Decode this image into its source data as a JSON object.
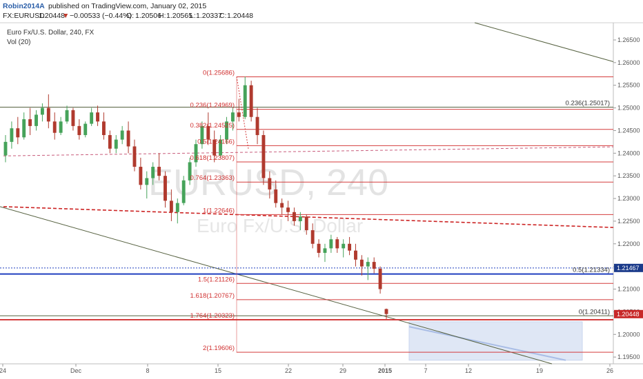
{
  "header": {
    "username": "Robin2014A",
    "published": "published on TradingView.com, January 02, 2015",
    "symbol": "FX:EURUSD",
    "last": "1.20448",
    "change_arrow": "▼",
    "change": "−0.00533 (−0.44%)",
    "o_label": "O:",
    "o": "1.20506",
    "h_label": "H:",
    "h": "1.20565",
    "l_label": "L:",
    "l": "1.20337",
    "c_label": "C:",
    "c": "1.20448"
  },
  "chart_title": "Euro Fx/U.S. Dollar, 240, FX",
  "indicator": "Vol (20)",
  "watermark": {
    "symbol": "EURUSD, 240",
    "name": "Euro Fx/U.S. Dollar"
  },
  "colors": {
    "up": "#46a35a",
    "down": "#b03a2e",
    "fib": "#d43b3b",
    "trend": "#55603f",
    "blue_level": "#1f3fbf",
    "projection": "#a9bde6",
    "price_label_blue": "#1a3a8a",
    "price_label_red": "#c82828"
  },
  "chart_data": {
    "type": "candlestick",
    "symbol": "FX:EURUSD",
    "timeframe": "240",
    "y_ticks": [
      "1.26500",
      "1.26000",
      "1.25500",
      "1.25000",
      "1.24500",
      "1.24000",
      "1.23500",
      "1.23000",
      "1.22500",
      "1.22000",
      "1.21500",
      "1.21000",
      "1.20500",
      "1.20000",
      "1.19500"
    ],
    "ylim": [
      1.1935,
      1.2688
    ],
    "x_ticks": [
      "24",
      "Dec",
      "8",
      "15",
      "22",
      "29",
      "2015",
      "7",
      "12",
      "19",
      "26"
    ],
    "price_labels": [
      {
        "text": "1.21467",
        "value": 1.21467,
        "color": "blue"
      },
      {
        "text": "1.20448",
        "value": 1.20448,
        "color": "red"
      }
    ],
    "fib_retracement": [
      {
        "label": "0(1.25686)",
        "value": 1.25686
      },
      {
        "label": "0.236(1.24969)",
        "value": 1.24969
      },
      {
        "label": "0.382(1.24525)",
        "value": 1.24525
      },
      {
        "label": "0.5(1.24166)",
        "value": 1.24166
      },
      {
        "label": "0.618(1.23807)",
        "value": 1.23807
      },
      {
        "label": "0.764(1.23363)",
        "value": 1.23363
      },
      {
        "label": "1(1.22646)",
        "value": 1.22646
      },
      {
        "label": "1.5(1.21126)",
        "value": 1.21126
      },
      {
        "label": "1.618(1.20767)",
        "value": 1.20767
      },
      {
        "label": "1.764(1.20323)",
        "value": 1.20323
      },
      {
        "label": "2(1.19606)",
        "value": 1.19606
      }
    ],
    "right_fib": [
      {
        "label": "0.236(1.25017)",
        "value": 1.25017
      },
      {
        "label": "0.5(1.21334)",
        "value": 1.21334
      },
      {
        "label": "0(1.20411)",
        "value": 1.20411
      }
    ],
    "horizontal_lines": [
      {
        "value": 1.25017,
        "style": "solid",
        "color": "olive"
      },
      {
        "value": 1.21467,
        "style": "dotted",
        "color": "blue"
      },
      {
        "value": 1.21334,
        "style": "solid-thick",
        "color": "blue"
      },
      {
        "value": 1.20411,
        "style": "solid",
        "color": "olive"
      },
      {
        "value": 1.20323,
        "style": "solid-thick",
        "color": "red"
      }
    ],
    "candles": [
      [
        1.2395,
        1.244,
        1.238,
        1.2425
      ],
      [
        1.2425,
        1.247,
        1.241,
        1.2455
      ],
      [
        1.2455,
        1.248,
        1.242,
        1.2435
      ],
      [
        1.2435,
        1.249,
        1.243,
        1.2475
      ],
      [
        1.2475,
        1.25,
        1.244,
        1.246
      ],
      [
        1.246,
        1.2495,
        1.245,
        1.2485
      ],
      [
        1.2485,
        1.251,
        1.247,
        1.25
      ],
      [
        1.25,
        1.253,
        1.2455,
        1.247
      ],
      [
        1.247,
        1.249,
        1.243,
        1.2445
      ],
      [
        1.2445,
        1.248,
        1.244,
        1.247
      ],
      [
        1.247,
        1.2505,
        1.2465,
        1.2495
      ],
      [
        1.2495,
        1.25,
        1.245,
        1.246
      ],
      [
        1.246,
        1.2475,
        1.243,
        1.244
      ],
      [
        1.244,
        1.247,
        1.2435,
        1.2465
      ],
      [
        1.2465,
        1.25,
        1.246,
        1.249
      ],
      [
        1.249,
        1.2505,
        1.246,
        1.247
      ],
      [
        1.247,
        1.249,
        1.243,
        1.244
      ],
      [
        1.244,
        1.245,
        1.24,
        1.241
      ],
      [
        1.241,
        1.244,
        1.24,
        1.243
      ],
      [
        1.243,
        1.246,
        1.242,
        1.245
      ],
      [
        1.245,
        1.247,
        1.24,
        1.2415
      ],
      [
        1.2415,
        1.243,
        1.236,
        1.237
      ],
      [
        1.237,
        1.239,
        1.232,
        1.233
      ],
      [
        1.233,
        1.236,
        1.23,
        1.2345
      ],
      [
        1.2345,
        1.238,
        1.233,
        1.237
      ],
      [
        1.237,
        1.24,
        1.234,
        1.235
      ],
      [
        1.235,
        1.236,
        1.228,
        1.2295
      ],
      [
        1.2295,
        1.232,
        1.225,
        1.227
      ],
      [
        1.227,
        1.23,
        1.2245,
        1.229
      ],
      [
        1.229,
        1.235,
        1.2285,
        1.234
      ],
      [
        1.234,
        1.239,
        1.233,
        1.238
      ],
      [
        1.238,
        1.243,
        1.237,
        1.242
      ],
      [
        1.242,
        1.247,
        1.241,
        1.246
      ],
      [
        1.246,
        1.249,
        1.242,
        1.243
      ],
      [
        1.243,
        1.245,
        1.238,
        1.2395
      ],
      [
        1.2395,
        1.244,
        1.239,
        1.243
      ],
      [
        1.243,
        1.248,
        1.242,
        1.247
      ],
      [
        1.247,
        1.25,
        1.245,
        1.249
      ],
      [
        1.249,
        1.252,
        1.247,
        1.248
      ],
      [
        1.248,
        1.2569,
        1.2475,
        1.255
      ],
      [
        1.255,
        1.256,
        1.247,
        1.248
      ],
      [
        1.248,
        1.25,
        1.242,
        1.244
      ],
      [
        1.244,
        1.245,
        1.233,
        1.2345
      ],
      [
        1.2345,
        1.236,
        1.23,
        1.232
      ],
      [
        1.232,
        1.234,
        1.228,
        1.229
      ],
      [
        1.229,
        1.23,
        1.2265,
        1.228
      ],
      [
        1.228,
        1.2295,
        1.225,
        1.227
      ],
      [
        1.227,
        1.228,
        1.224,
        1.225
      ],
      [
        1.225,
        1.227,
        1.223,
        1.226
      ],
      [
        1.226,
        1.2265,
        1.222,
        1.223
      ],
      [
        1.223,
        1.2245,
        1.219,
        1.22
      ],
      [
        1.22,
        1.221,
        1.217,
        1.218
      ],
      [
        1.218,
        1.22,
        1.216,
        1.219
      ],
      [
        1.219,
        1.222,
        1.218,
        1.221
      ],
      [
        1.221,
        1.2215,
        1.218,
        1.219
      ],
      [
        1.219,
        1.221,
        1.217,
        1.22
      ],
      [
        1.22,
        1.2215,
        1.2175,
        1.2185
      ],
      [
        1.2185,
        1.22,
        1.215,
        1.2165
      ],
      [
        1.2165,
        1.2175,
        1.213,
        1.215
      ],
      [
        1.215,
        1.217,
        1.212,
        1.216
      ],
      [
        1.216,
        1.217,
        1.2135,
        1.2145
      ],
      [
        1.2145,
        1.215,
        1.209,
        1.21
      ],
      [
        1.2056,
        1.2057,
        1.2034,
        1.2045
      ]
    ]
  }
}
